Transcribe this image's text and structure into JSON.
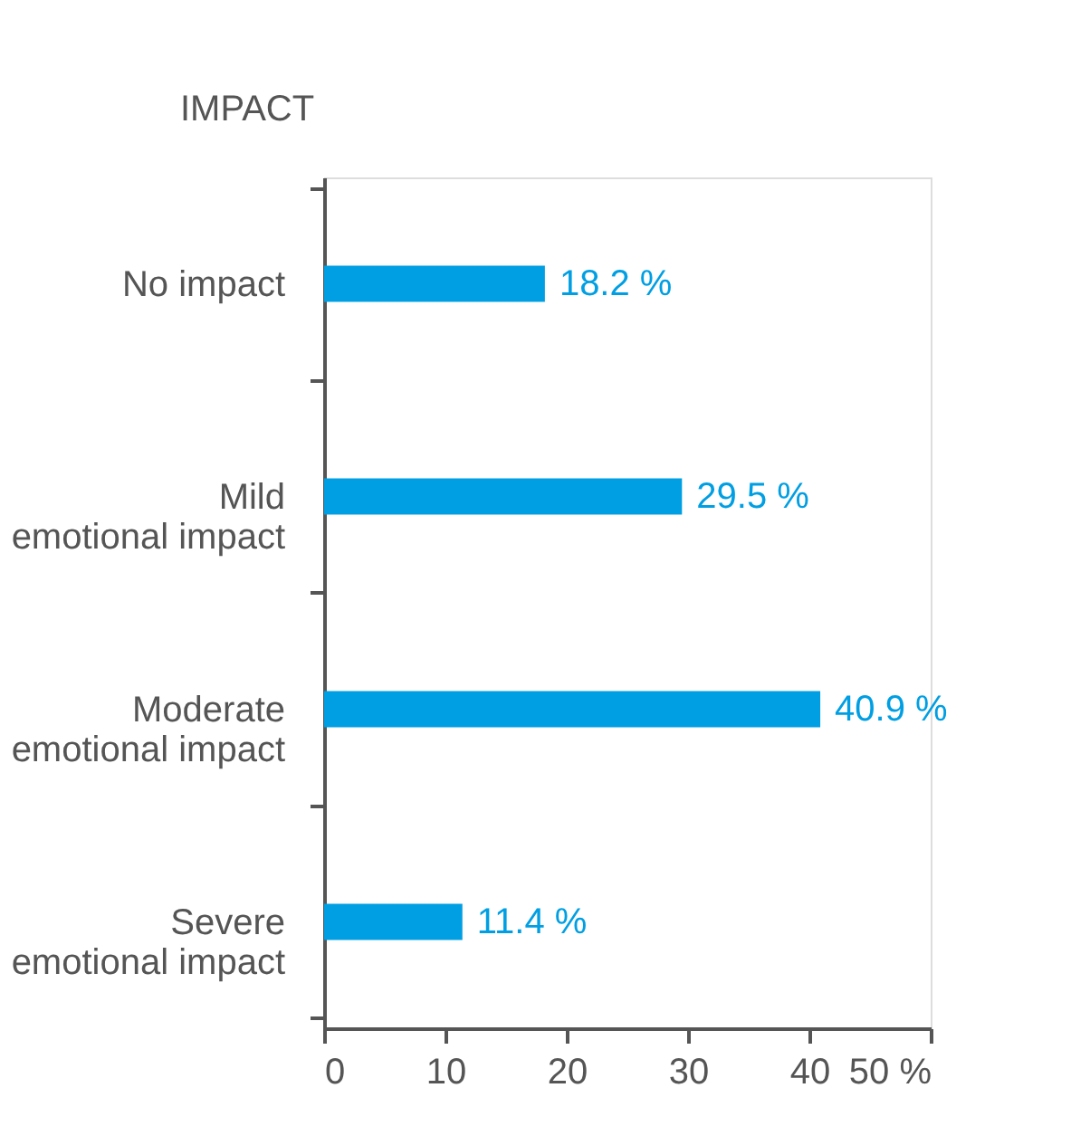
{
  "chart_data": {
    "type": "bar",
    "orientation": "horizontal",
    "ylabel": "IMPACT",
    "categories": [
      "No impact",
      "Mild\nemotional impact",
      "Moderate\nemotional impact",
      "Severe\nemotional impact"
    ],
    "values": [
      18.2,
      29.5,
      40.9,
      11.4
    ],
    "value_labels": [
      "18.2 %",
      "29.5 %",
      "40.9 %",
      "11.4 %"
    ],
    "color": "#009fe3",
    "xlim": [
      0,
      50
    ],
    "xticks": [
      0,
      10,
      20,
      30,
      40,
      {
        "value": 50,
        "label": "50 %"
      }
    ],
    "grid": false
  }
}
